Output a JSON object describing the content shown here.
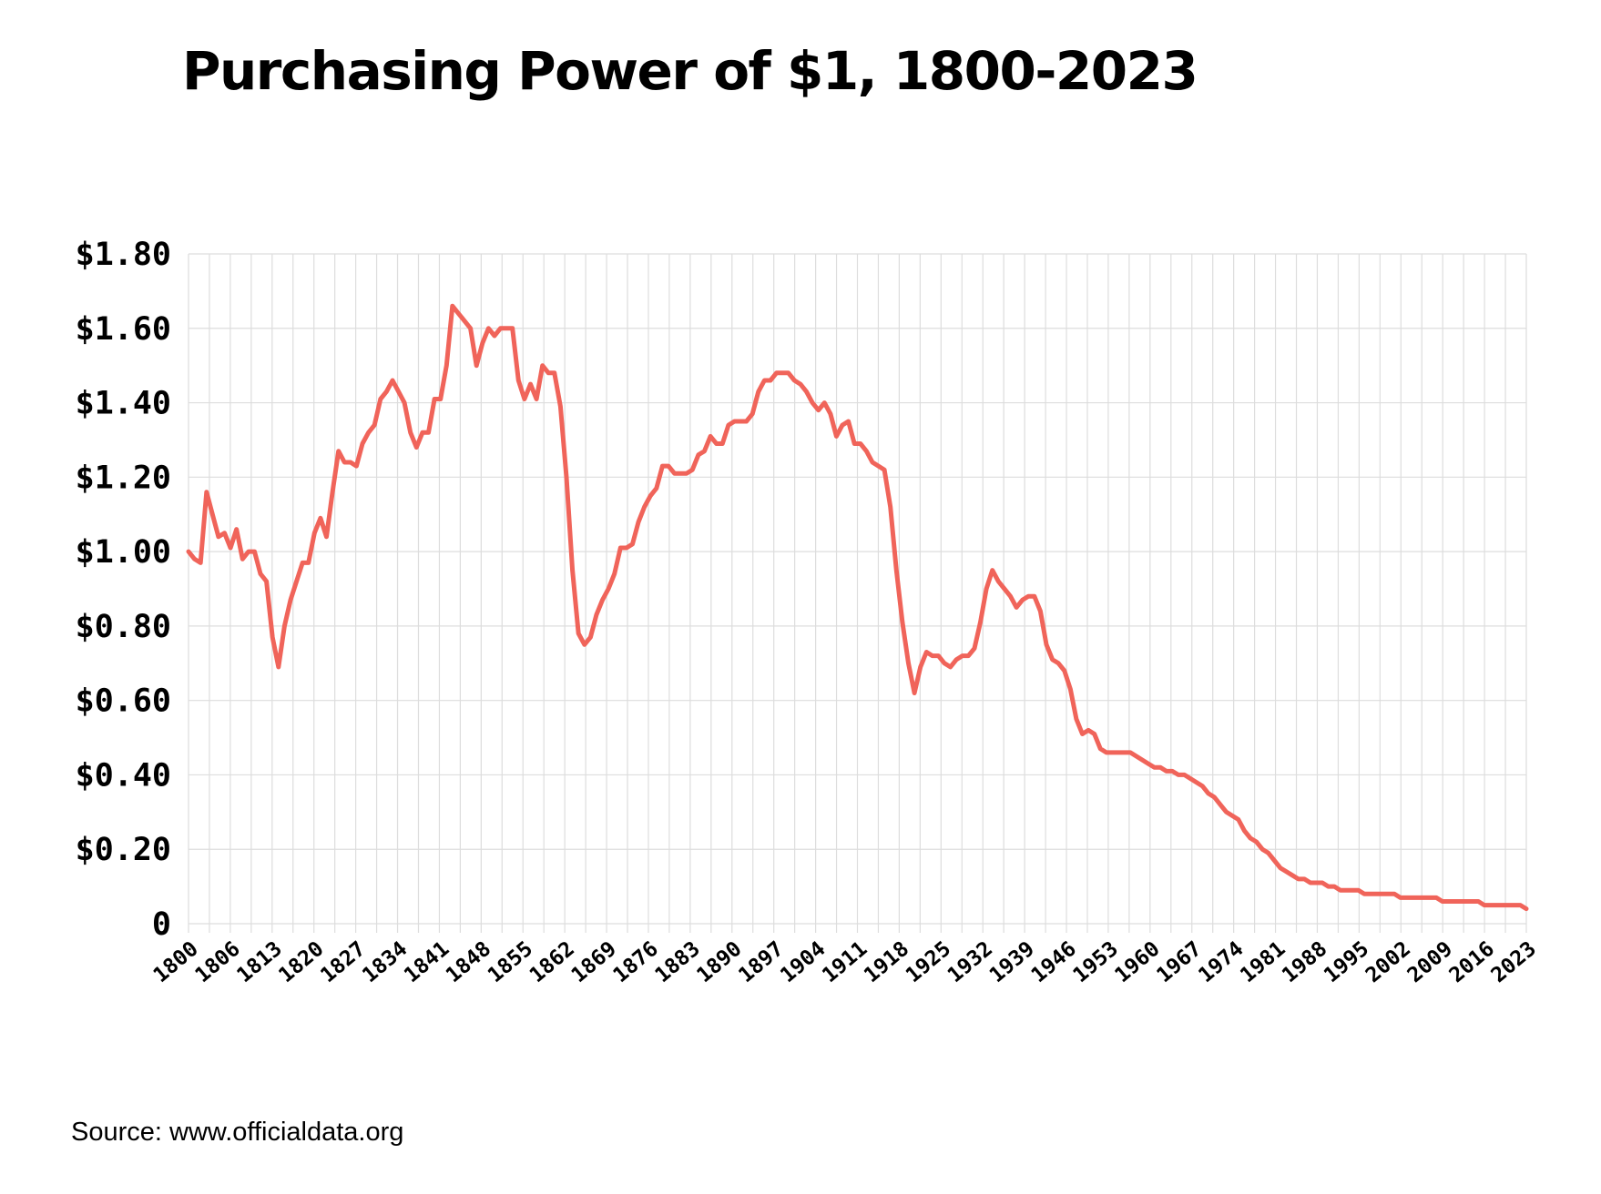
{
  "title": "Purchasing Power of $1, 1800-2023",
  "source": "Source: www.officialdata.org",
  "colors": {
    "line": "#f0645a",
    "grid": "#dddddd",
    "text": "#000000"
  },
  "chart_data": {
    "type": "line",
    "title": "Purchasing Power of $1, 1800-2023",
    "xlabel": "",
    "ylabel": "",
    "xlim": [
      1800,
      2023
    ],
    "ylim": [
      0,
      1.8
    ],
    "grid": true,
    "legend": "none",
    "y_ticks": [
      {
        "value": 0,
        "label": "0"
      },
      {
        "value": 0.2,
        "label": "$0.20"
      },
      {
        "value": 0.4,
        "label": "$0.40"
      },
      {
        "value": 0.6,
        "label": "$0.60"
      },
      {
        "value": 0.8,
        "label": "$0.80"
      },
      {
        "value": 1.0,
        "label": "$1.00"
      },
      {
        "value": 1.2,
        "label": "$1.20"
      },
      {
        "value": 1.4,
        "label": "$1.40"
      },
      {
        "value": 1.6,
        "label": "$1.60"
      },
      {
        "value": 1.8,
        "label": "$1.80"
      }
    ],
    "x_ticks": [
      "1800",
      "1806",
      "1813",
      "1820",
      "1827",
      "1834",
      "1841",
      "1848",
      "1855",
      "1862",
      "1869",
      "1876",
      "1883",
      "1890",
      "1897",
      "1904",
      "1911",
      "1918",
      "1925",
      "1932",
      "1939",
      "1946",
      "1953",
      "1960",
      "1967",
      "1974",
      "1981",
      "1988",
      "1995",
      "2002",
      "2009",
      "2016",
      "2023"
    ],
    "series": [
      {
        "points": [
          [
            1800,
            1.0
          ],
          [
            1801,
            0.98
          ],
          [
            1802,
            0.97
          ],
          [
            1803,
            1.16
          ],
          [
            1804,
            1.1
          ],
          [
            1805,
            1.04
          ],
          [
            1806,
            1.05
          ],
          [
            1807,
            1.01
          ],
          [
            1808,
            1.06
          ],
          [
            1809,
            0.98
          ],
          [
            1810,
            1.0
          ],
          [
            1811,
            1.0
          ],
          [
            1812,
            0.94
          ],
          [
            1813,
            0.92
          ],
          [
            1814,
            0.77
          ],
          [
            1815,
            0.69
          ],
          [
            1816,
            0.8
          ],
          [
            1817,
            0.87
          ],
          [
            1818,
            0.92
          ],
          [
            1819,
            0.97
          ],
          [
            1820,
            0.97
          ],
          [
            1821,
            1.05
          ],
          [
            1822,
            1.09
          ],
          [
            1823,
            1.04
          ],
          [
            1824,
            1.16
          ],
          [
            1825,
            1.27
          ],
          [
            1826,
            1.24
          ],
          [
            1827,
            1.24
          ],
          [
            1828,
            1.23
          ],
          [
            1829,
            1.29
          ],
          [
            1830,
            1.32
          ],
          [
            1831,
            1.34
          ],
          [
            1832,
            1.41
          ],
          [
            1833,
            1.43
          ],
          [
            1834,
            1.46
          ],
          [
            1835,
            1.43
          ],
          [
            1836,
            1.4
          ],
          [
            1837,
            1.32
          ],
          [
            1838,
            1.28
          ],
          [
            1839,
            1.32
          ],
          [
            1840,
            1.32
          ],
          [
            1841,
            1.41
          ],
          [
            1842,
            1.41
          ],
          [
            1843,
            1.5
          ],
          [
            1844,
            1.66
          ],
          [
            1845,
            1.64
          ],
          [
            1846,
            1.62
          ],
          [
            1847,
            1.6
          ],
          [
            1848,
            1.5
          ],
          [
            1849,
            1.56
          ],
          [
            1850,
            1.6
          ],
          [
            1851,
            1.58
          ],
          [
            1852,
            1.6
          ],
          [
            1853,
            1.6
          ],
          [
            1854,
            1.6
          ],
          [
            1855,
            1.46
          ],
          [
            1856,
            1.41
          ],
          [
            1857,
            1.45
          ],
          [
            1858,
            1.41
          ],
          [
            1859,
            1.5
          ],
          [
            1860,
            1.48
          ],
          [
            1861,
            1.48
          ],
          [
            1862,
            1.39
          ],
          [
            1863,
            1.2
          ],
          [
            1864,
            0.95
          ],
          [
            1865,
            0.78
          ],
          [
            1866,
            0.75
          ],
          [
            1867,
            0.77
          ],
          [
            1868,
            0.83
          ],
          [
            1869,
            0.87
          ],
          [
            1870,
            0.9
          ],
          [
            1871,
            0.94
          ],
          [
            1872,
            1.01
          ],
          [
            1873,
            1.01
          ],
          [
            1874,
            1.02
          ],
          [
            1875,
            1.08
          ],
          [
            1876,
            1.12
          ],
          [
            1877,
            1.15
          ],
          [
            1878,
            1.17
          ],
          [
            1879,
            1.23
          ],
          [
            1880,
            1.23
          ],
          [
            1881,
            1.21
          ],
          [
            1882,
            1.21
          ],
          [
            1883,
            1.21
          ],
          [
            1884,
            1.22
          ],
          [
            1885,
            1.26
          ],
          [
            1886,
            1.27
          ],
          [
            1887,
            1.31
          ],
          [
            1888,
            1.29
          ],
          [
            1889,
            1.29
          ],
          [
            1890,
            1.34
          ],
          [
            1891,
            1.35
          ],
          [
            1892,
            1.35
          ],
          [
            1893,
            1.35
          ],
          [
            1894,
            1.37
          ],
          [
            1895,
            1.43
          ],
          [
            1896,
            1.46
          ],
          [
            1897,
            1.46
          ],
          [
            1898,
            1.48
          ],
          [
            1899,
            1.48
          ],
          [
            1900,
            1.48
          ],
          [
            1901,
            1.46
          ],
          [
            1902,
            1.45
          ],
          [
            1903,
            1.43
          ],
          [
            1904,
            1.4
          ],
          [
            1905,
            1.38
          ],
          [
            1906,
            1.4
          ],
          [
            1907,
            1.37
          ],
          [
            1908,
            1.31
          ],
          [
            1909,
            1.34
          ],
          [
            1910,
            1.35
          ],
          [
            1911,
            1.29
          ],
          [
            1912,
            1.29
          ],
          [
            1913,
            1.27
          ],
          [
            1914,
            1.24
          ],
          [
            1915,
            1.23
          ],
          [
            1916,
            1.22
          ],
          [
            1917,
            1.12
          ],
          [
            1918,
            0.95
          ],
          [
            1919,
            0.81
          ],
          [
            1920,
            0.7
          ],
          [
            1921,
            0.62
          ],
          [
            1922,
            0.69
          ],
          [
            1923,
            0.73
          ],
          [
            1924,
            0.72
          ],
          [
            1925,
            0.72
          ],
          [
            1926,
            0.7
          ],
          [
            1927,
            0.69
          ],
          [
            1928,
            0.71
          ],
          [
            1929,
            0.72
          ],
          [
            1930,
            0.72
          ],
          [
            1931,
            0.74
          ],
          [
            1932,
            0.81
          ],
          [
            1933,
            0.9
          ],
          [
            1934,
            0.95
          ],
          [
            1935,
            0.92
          ],
          [
            1936,
            0.9
          ],
          [
            1937,
            0.88
          ],
          [
            1938,
            0.85
          ],
          [
            1939,
            0.87
          ],
          [
            1940,
            0.88
          ],
          [
            1941,
            0.88
          ],
          [
            1942,
            0.84
          ],
          [
            1943,
            0.75
          ],
          [
            1944,
            0.71
          ],
          [
            1945,
            0.7
          ],
          [
            1946,
            0.68
          ],
          [
            1947,
            0.63
          ],
          [
            1948,
            0.55
          ],
          [
            1949,
            0.51
          ],
          [
            1950,
            0.52
          ],
          [
            1951,
            0.51
          ],
          [
            1952,
            0.47
          ],
          [
            1953,
            0.46
          ],
          [
            1954,
            0.46
          ],
          [
            1955,
            0.46
          ],
          [
            1956,
            0.46
          ],
          [
            1957,
            0.46
          ],
          [
            1958,
            0.45
          ],
          [
            1959,
            0.44
          ],
          [
            1960,
            0.43
          ],
          [
            1961,
            0.42
          ],
          [
            1962,
            0.42
          ],
          [
            1963,
            0.41
          ],
          [
            1964,
            0.41
          ],
          [
            1965,
            0.4
          ],
          [
            1966,
            0.4
          ],
          [
            1967,
            0.39
          ],
          [
            1968,
            0.38
          ],
          [
            1969,
            0.37
          ],
          [
            1970,
            0.35
          ],
          [
            1971,
            0.34
          ],
          [
            1972,
            0.32
          ],
          [
            1973,
            0.3
          ],
          [
            1974,
            0.29
          ],
          [
            1975,
            0.28
          ],
          [
            1976,
            0.25
          ],
          [
            1977,
            0.23
          ],
          [
            1978,
            0.22
          ],
          [
            1979,
            0.2
          ],
          [
            1980,
            0.19
          ],
          [
            1981,
            0.17
          ],
          [
            1982,
            0.15
          ],
          [
            1983,
            0.14
          ],
          [
            1984,
            0.13
          ],
          [
            1985,
            0.12
          ],
          [
            1986,
            0.12
          ],
          [
            1987,
            0.11
          ],
          [
            1988,
            0.11
          ],
          [
            1989,
            0.11
          ],
          [
            1990,
            0.1
          ],
          [
            1991,
            0.1
          ],
          [
            1992,
            0.09
          ],
          [
            1993,
            0.09
          ],
          [
            1994,
            0.09
          ],
          [
            1995,
            0.09
          ],
          [
            1996,
            0.08
          ],
          [
            1997,
            0.08
          ],
          [
            1998,
            0.08
          ],
          [
            1999,
            0.08
          ],
          [
            2000,
            0.08
          ],
          [
            2001,
            0.08
          ],
          [
            2002,
            0.07
          ],
          [
            2003,
            0.07
          ],
          [
            2004,
            0.07
          ],
          [
            2005,
            0.07
          ],
          [
            2006,
            0.07
          ],
          [
            2007,
            0.07
          ],
          [
            2008,
            0.07
          ],
          [
            2009,
            0.06
          ],
          [
            2010,
            0.06
          ],
          [
            2011,
            0.06
          ],
          [
            2012,
            0.06
          ],
          [
            2013,
            0.06
          ],
          [
            2014,
            0.06
          ],
          [
            2015,
            0.06
          ],
          [
            2016,
            0.05
          ],
          [
            2017,
            0.05
          ],
          [
            2018,
            0.05
          ],
          [
            2019,
            0.05
          ],
          [
            2020,
            0.05
          ],
          [
            2021,
            0.05
          ],
          [
            2022,
            0.05
          ],
          [
            2023,
            0.04
          ]
        ]
      }
    ]
  }
}
